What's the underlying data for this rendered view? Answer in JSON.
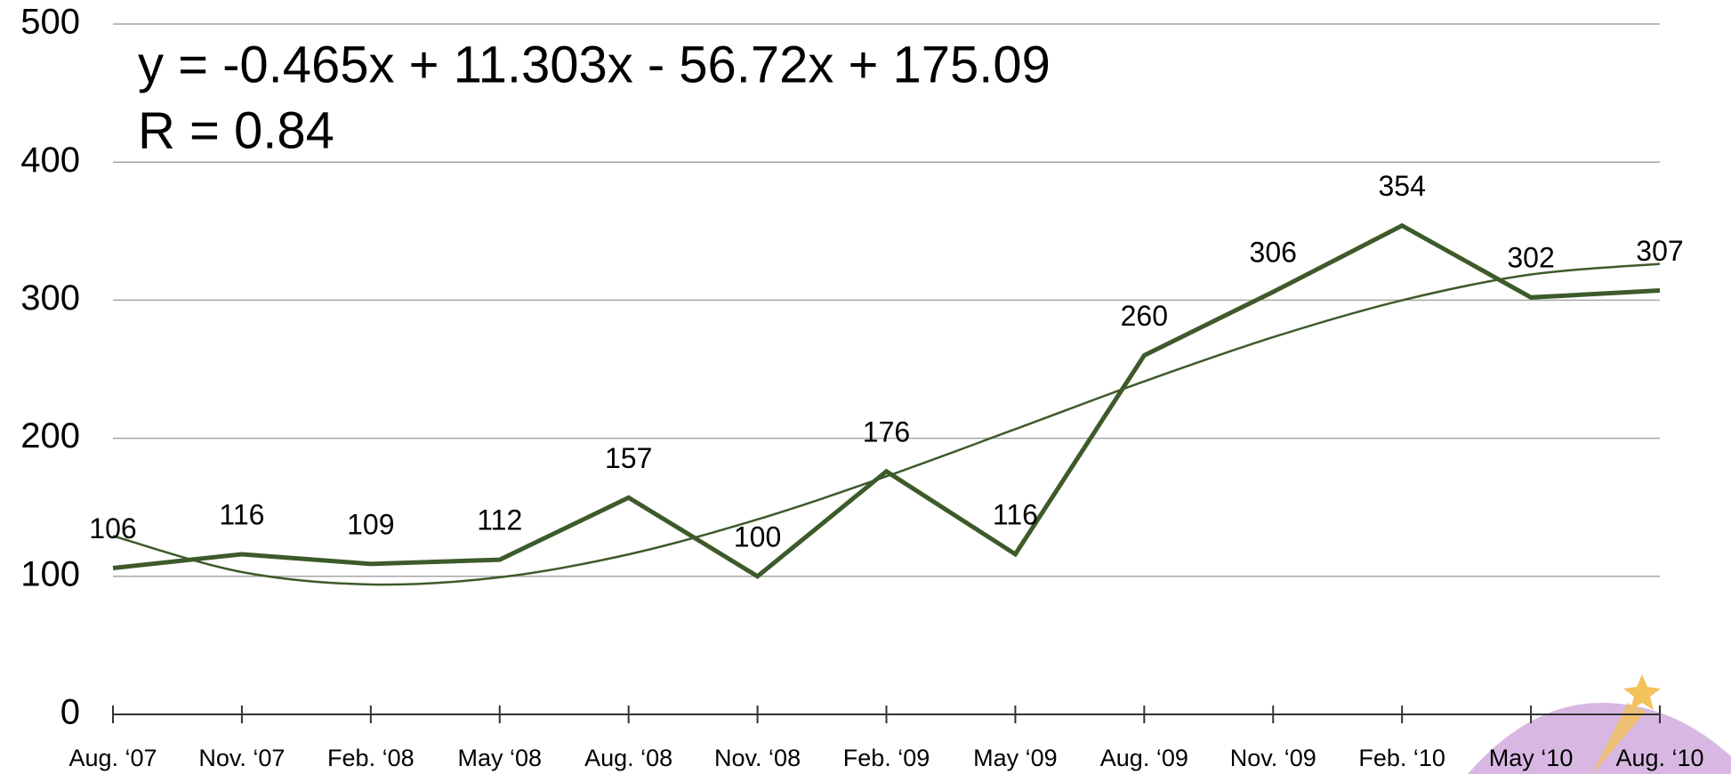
{
  "chart_data": {
    "type": "line",
    "annotations": [
      "y = -0.465x  + 11.303x  - 56.72x + 175.09",
      "R  = 0.84"
    ],
    "categories": [
      "Aug. ‘07",
      "Nov. ‘07",
      "Feb. ‘08",
      "May ‘08",
      "Aug. ‘08",
      "Nov. ‘08",
      "Feb. ‘09",
      "May ‘09",
      "Aug. ‘09",
      "Nov. ‘09",
      "Feb. ‘10",
      "May ‘10",
      "Aug. ‘10"
    ],
    "series": [
      {
        "color": "#3d5a2a",
        "values": [
          106,
          116,
          109,
          112,
          157,
          100,
          176,
          116,
          260,
          306,
          354,
          302,
          307
        ]
      }
    ],
    "trend": {
      "color": "#3d5a2a",
      "values": [
        129.2,
        103.1,
        94.1,
        99.3,
        115.9,
        141.2,
        172.4,
        206.6,
        241.2,
        273.2,
        299.9,
        318.6,
        326.3
      ]
    },
    "ylim": [
      0,
      500
    ],
    "yticks": [
      0,
      100,
      200,
      300,
      400,
      500
    ],
    "grid": true
  }
}
